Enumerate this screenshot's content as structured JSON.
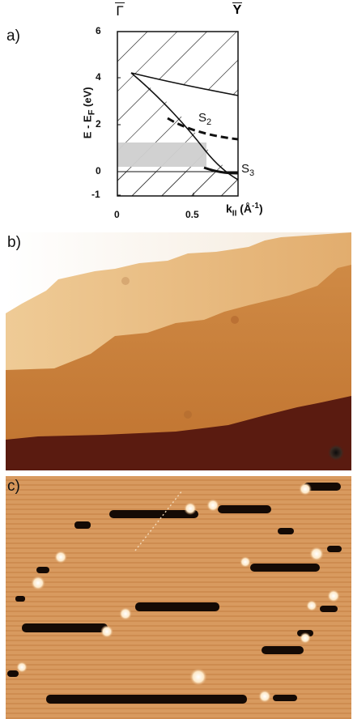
{
  "panel_a": {
    "label": "a)",
    "top_left_point": "Γ",
    "top_right_point": "Y",
    "ylabel": "E - E",
    "ylabel_sub": "F",
    "ylabel_unit": " (eV)",
    "y_ticks": [
      "6",
      "4",
      "2",
      "0",
      "-1"
    ],
    "x_ticks": [
      "0",
      "0.5"
    ],
    "xlabel": "k",
    "xlabel_sub": "II",
    "xlabel_unit": " (Å",
    "xlabel_sup": "-1",
    "xlabel_close": ")",
    "state_s2_main": "S",
    "state_s2_sub": "2",
    "state_s3_main": "S",
    "state_s3_sub": "3",
    "colors": {
      "hatch": "#1a1a1a",
      "gray_band": "#cfcfcf",
      "frame": "#111111"
    }
  },
  "panel_b": {
    "label": "b)",
    "colors": {
      "top_terrace": "#fbf4ea",
      "mid_terrace": "#e8b77b",
      "lower_terrace": "#c97e3a",
      "bottom_terrace": "#5a1b10"
    }
  },
  "panel_c": {
    "label": "c)",
    "colors": {
      "background": "#d89a5f",
      "dark_feature": "#140a05",
      "bright_feature": "#fff6e6"
    }
  }
}
